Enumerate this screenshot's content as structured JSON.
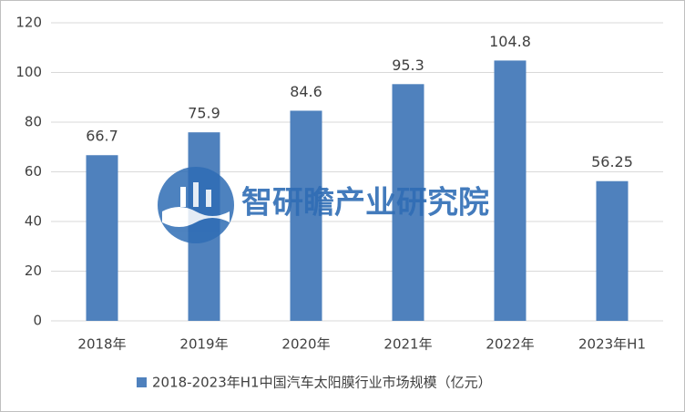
{
  "chart_data": {
    "type": "bar",
    "categories": [
      "2018年",
      "2019年",
      "2020年",
      "2021年",
      "2022年",
      "2023年H1"
    ],
    "series": [
      {
        "name": "2018-2023年H1中国汽车太阳膜行业市场规模（亿元）",
        "color": "#4f81bd",
        "values": [
          66.7,
          75.9,
          84.6,
          95.3,
          104.8,
          56.25
        ]
      }
    ],
    "ylim": [
      0,
      120
    ],
    "yticks": [
      0,
      20,
      40,
      60,
      80,
      100,
      120
    ],
    "grid": true,
    "legend": "bottom",
    "watermark": "智研瞻产业研究院"
  }
}
